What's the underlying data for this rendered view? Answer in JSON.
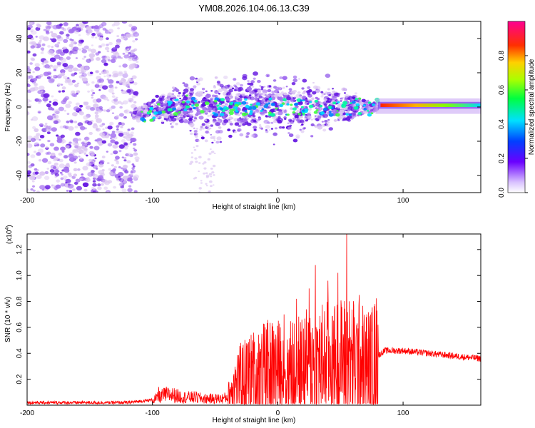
{
  "figure_title": "YM08.2026.104.06.13.C39",
  "colors": {
    "signal": "#ff0000",
    "dot_light": "#dcc6f2",
    "dot_mid": "#a36ef0",
    "dot_dark": "#6010e0",
    "axis": "#000000"
  },
  "chart_data": [
    {
      "type": "heatmap",
      "title": "YM08.2026.104.06.13.C39",
      "xlabel": "Height of straight line (km)",
      "ylabel": "Frequency (Hz)",
      "xlim": [
        -200,
        162
      ],
      "ylim": [
        -50,
        50
      ],
      "xticks": [
        -200,
        -100,
        0,
        100
      ],
      "yticks": [
        -40,
        -20,
        0,
        20,
        40
      ],
      "colorbar": {
        "label": "Normalized spectral amplitude",
        "range": [
          0,
          1
        ],
        "ticks": [
          "0.0",
          "0.2",
          "0.4",
          "0.6",
          "0.8"
        ],
        "tick_values": [
          0.0,
          0.2,
          0.4,
          0.6,
          0.8
        ],
        "colormap": "hsv-rainbow: purple → blue → cyan → green → yellow → red → magenta"
      },
      "features": [
        {
          "region": "noise",
          "x_range": [
            -200,
            -115
          ],
          "freq_range": [
            -50,
            50
          ]
        },
        {
          "region": "scattered signal",
          "x_range": [
            -115,
            80
          ],
          "freq_spread_peak": 25
        },
        {
          "region": "coherent tone",
          "x_range": [
            80,
            162
          ],
          "freq": 1,
          "amplitude": 0.9
        }
      ]
    },
    {
      "type": "line",
      "xlabel": "Height of straight line (km)",
      "ylabel": "SNR (10 * v/v)",
      "y_multiplier_label": "(x10",
      "y_multiplier_exponent": "4",
      "y_multiplier_close": ")",
      "xlim": [
        -200,
        162
      ],
      "ylim": [
        0,
        1.32
      ],
      "xticks": [
        -200,
        -100,
        0,
        100
      ],
      "yticks": [
        0.2,
        0.4,
        0.6,
        0.8,
        1.0,
        1.2
      ],
      "ytick_labels": [
        "0.2",
        "0.4",
        "0.6",
        "0.8",
        "1.0",
        "1.2"
      ],
      "series": [
        {
          "name": "SNR",
          "color": "#ff0000",
          "x": [
            -200,
            -160,
            -120,
            -100,
            -95,
            -90,
            -85,
            -80,
            -75,
            -70,
            -65,
            -60,
            -55,
            -50,
            -45,
            -40,
            -35,
            -30,
            -25,
            -20,
            -15,
            -10,
            -5,
            0,
            5,
            10,
            15,
            20,
            25,
            30,
            35,
            40,
            45,
            50,
            55,
            60,
            65,
            70,
            75,
            80,
            85,
            90,
            100,
            110,
            120,
            130,
            140,
            150,
            162
          ],
          "y": [
            0.02,
            0.02,
            0.02,
            0.04,
            0.06,
            0.08,
            0.08,
            0.07,
            0.06,
            0.06,
            0.06,
            0.05,
            0.05,
            0.05,
            0.05,
            0.06,
            0.16,
            0.2,
            0.22,
            0.24,
            0.26,
            0.27,
            0.28,
            0.28,
            0.27,
            0.28,
            0.3,
            0.3,
            0.32,
            0.33,
            0.34,
            0.34,
            0.34,
            0.35,
            0.36,
            0.35,
            0.34,
            0.33,
            0.32,
            0.38,
            0.42,
            0.42,
            0.42,
            0.41,
            0.4,
            0.39,
            0.38,
            0.37,
            0.36
          ]
        }
      ],
      "spikes": [
        {
          "x": -95,
          "y": 0.14
        },
        {
          "x": -35,
          "y": 0.24
        },
        {
          "x": -20,
          "y": 0.5
        },
        {
          "x": -10,
          "y": 0.6
        },
        {
          "x": 5,
          "y": 0.7
        },
        {
          "x": 15,
          "y": 0.82
        },
        {
          "x": 25,
          "y": 0.9
        },
        {
          "x": 30,
          "y": 1.08
        },
        {
          "x": 40,
          "y": 0.96
        },
        {
          "x": 48,
          "y": 1.02
        },
        {
          "x": 55,
          "y": 1.32
        },
        {
          "x": 65,
          "y": 0.85
        },
        {
          "x": 80,
          "y": 0.62
        }
      ]
    }
  ]
}
